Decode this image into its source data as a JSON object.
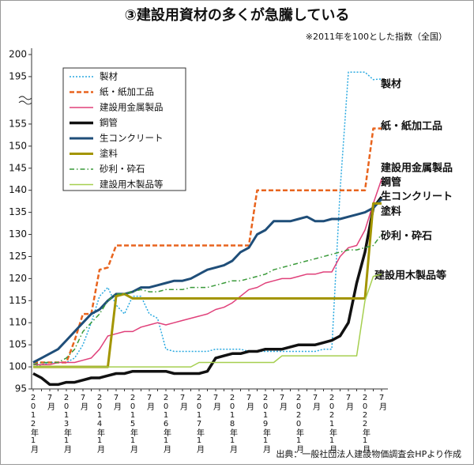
{
  "chart_data": {
    "type": "line",
    "title": "③建設用資材の多くが急騰している",
    "subtitle": "※2011年を100とした指数（全国）",
    "source": "出典：一般社団法人建設物価調査会HPより作成",
    "categories": [
      "2012年1月",
      null,
      "7月",
      null,
      "2013年1月",
      null,
      "7月",
      null,
      "2014年1月",
      null,
      "7月",
      null,
      "2015年1月",
      null,
      "7月",
      null,
      "2016年1月",
      null,
      "7月",
      null,
      "2017年1月",
      null,
      "7月",
      null,
      "2018年1月",
      null,
      "7月",
      null,
      "2019年1月",
      null,
      "7月",
      null,
      "2020年1月",
      null,
      "7月",
      null,
      "2021年1月",
      null,
      "7月",
      null,
      "2022年1月",
      null,
      "7月"
    ],
    "ylim": [
      95,
      200
    ],
    "yticks": [
      95,
      100,
      105,
      110,
      115,
      120,
      125,
      130,
      135,
      140,
      145,
      150,
      155,
      195,
      200
    ],
    "grid": false,
    "legend": "upper left",
    "series": [
      {
        "name": "製材",
        "color": "#2aa9e0",
        "linestyle": "dotted",
        "values": [
          100,
          100.5,
          101,
          101,
          101,
          102,
          105,
          110,
          116,
          118,
          114,
          112,
          116,
          116,
          112,
          111,
          104,
          103.5,
          103.5,
          103.5,
          103.5,
          103.5,
          104,
          104,
          104,
          104,
          103.5,
          103.5,
          103.5,
          103.5,
          103.5,
          103.5,
          103.5,
          103.5,
          103.5,
          104,
          104,
          140,
          196,
          196,
          196,
          192.5,
          193
        ]
      },
      {
        "name": "紙・紙加工品",
        "color": "#e8641e",
        "linestyle": "dashed",
        "values": [
          101,
          101,
          101,
          101,
          101,
          106,
          112,
          112,
          122,
          122.5,
          127.5,
          127.5,
          127.5,
          127.5,
          127.5,
          127.5,
          127.5,
          127.5,
          127.5,
          127.5,
          127.5,
          127.5,
          127.5,
          127.5,
          127.5,
          127.5,
          127.5,
          140,
          140,
          140,
          140,
          140,
          140,
          140,
          140,
          140,
          140,
          140,
          140,
          140,
          140,
          154,
          154
        ]
      },
      {
        "name": "建設用金属製品",
        "color": "#e0407a",
        "linestyle": "solid",
        "values": [
          100.5,
          100.5,
          100.5,
          101,
          101,
          101,
          101.5,
          102,
          104,
          107,
          107.5,
          108,
          108,
          109,
          109.5,
          110,
          109.5,
          110,
          110.5,
          111,
          111.5,
          112,
          113,
          113.5,
          114.5,
          116,
          117.5,
          118,
          119,
          119.5,
          120,
          120,
          120.5,
          121,
          121,
          121.5,
          121.5,
          125,
          127,
          127.5,
          131,
          137,
          142.5
        ]
      },
      {
        "name": "鋼管",
        "color": "#111111",
        "linestyle": "solid",
        "values": [
          98.5,
          97.5,
          96,
          96,
          96.5,
          96.5,
          97,
          97.5,
          97.5,
          98,
          98.5,
          98.5,
          99,
          99,
          99,
          99,
          99,
          98.5,
          98.5,
          98.5,
          98.5,
          99,
          102,
          102.5,
          103,
          103,
          103.5,
          103.5,
          104,
          104,
          104,
          104.5,
          105,
          105,
          105,
          105.5,
          106,
          107,
          110,
          119,
          126,
          136,
          138.5
        ]
      },
      {
        "name": "生コンクリート",
        "color": "#1f4e79",
        "linestyle": "solid",
        "values": [
          101,
          102,
          103,
          104,
          106,
          108,
          110,
          112,
          113,
          115,
          116.5,
          116.5,
          117,
          118,
          118,
          118.5,
          119,
          119.5,
          119.5,
          120,
          121,
          122,
          122.5,
          123,
          124,
          126,
          127,
          130,
          131,
          133,
          133,
          133,
          133.5,
          134,
          133,
          133,
          133.5,
          133.5,
          134,
          134.5,
          135,
          136,
          138
        ]
      },
      {
        "name": "塗料",
        "color": "#a39500",
        "linestyle": "solid",
        "values": [
          100,
          100,
          100,
          100,
          100,
          100,
          100,
          100,
          100,
          100,
          116,
          116.5,
          115.5,
          115.5,
          115.5,
          115.5,
          115.5,
          115.5,
          115.5,
          115.5,
          115.5,
          115.5,
          115.5,
          115.5,
          115.5,
          115.5,
          115.5,
          115.5,
          115.5,
          115.5,
          115.5,
          115.5,
          115.5,
          115.5,
          115.5,
          115.5,
          115.5,
          115.5,
          115.5,
          115.5,
          115.5,
          137,
          137
        ]
      },
      {
        "name": "砂利・砕石",
        "color": "#3a9a3a",
        "linestyle": "dashdot",
        "values": [
          100.5,
          101,
          101,
          101,
          102,
          104,
          108,
          110,
          112,
          115,
          116.5,
          116.5,
          117,
          117.5,
          117,
          117,
          117.5,
          117.5,
          117.5,
          118,
          118,
          118,
          118.5,
          119,
          119.5,
          119.5,
          120,
          120.5,
          121,
          122,
          122.5,
          123,
          123.5,
          124,
          124.5,
          125,
          125.5,
          126,
          126.5,
          126.5,
          127,
          127.5,
          130
        ]
      },
      {
        "name": "建設用木製品等",
        "color": "#a6cf50",
        "linestyle": "solid",
        "values": [
          100,
          100,
          100,
          100,
          100,
          100,
          100,
          100,
          100,
          100,
          100,
          100,
          100,
          100,
          100,
          100,
          100,
          100,
          100,
          100,
          101,
          101,
          101,
          101,
          101,
          101,
          101,
          101,
          101,
          101,
          102.5,
          102.5,
          102.5,
          102.5,
          102.5,
          102.5,
          102.5,
          102.5,
          102.5,
          102.5,
          115,
          120.5,
          121
        ]
      }
    ]
  }
}
